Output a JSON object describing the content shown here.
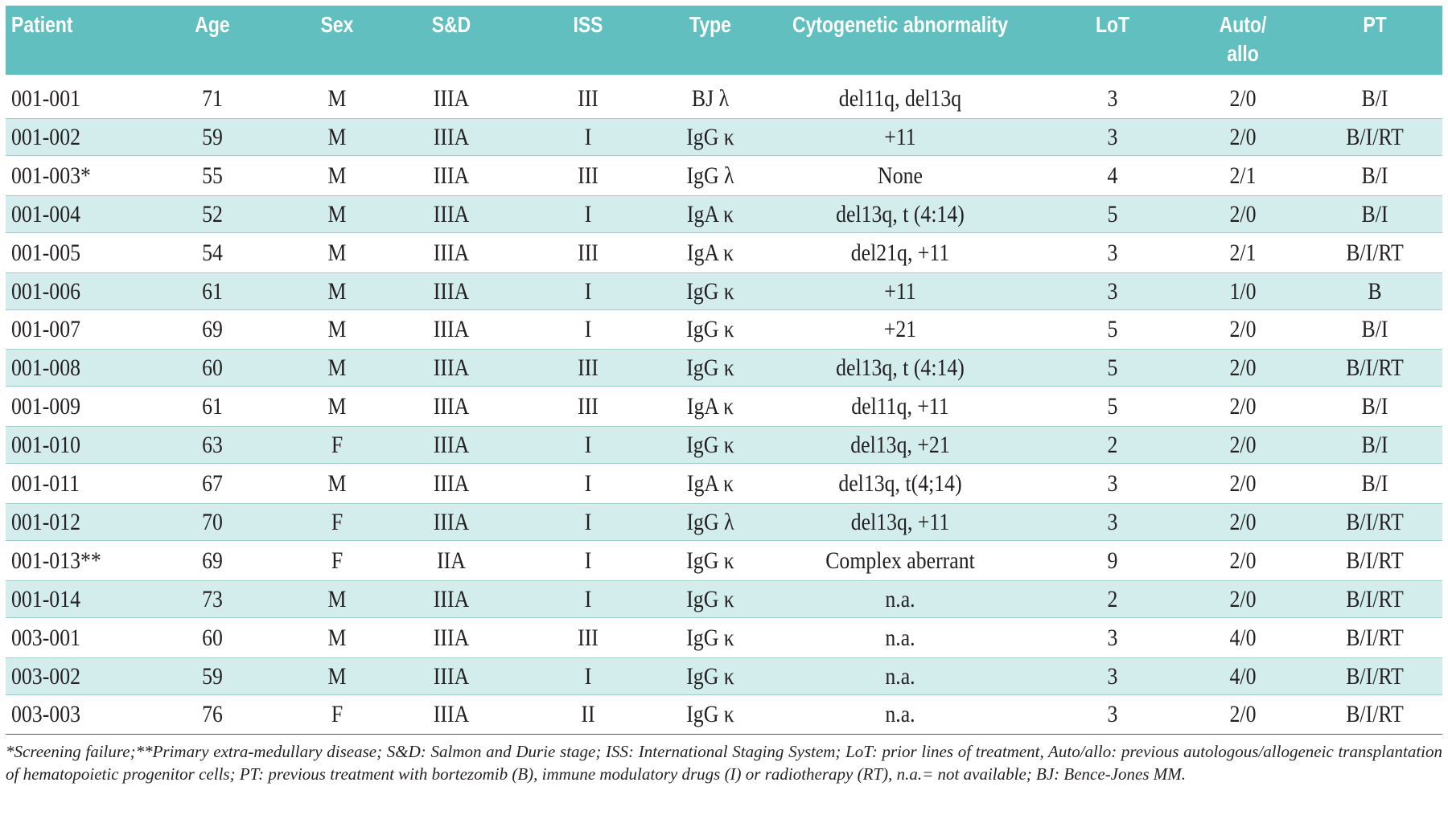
{
  "table": {
    "header": [
      "Patient",
      "Age",
      "Sex",
      "S&D",
      "ISS",
      "Type",
      "Cytogenetic abnormality",
      "LoT",
      "Auto/\nallo",
      "PT"
    ],
    "rows": [
      [
        "001-001",
        "71",
        "M",
        "IIIA",
        "III",
        "BJ λ",
        "del11q, del13q",
        "3",
        "2/0",
        "B/I"
      ],
      [
        "001-002",
        "59",
        "M",
        "IIIA",
        "I",
        "IgG κ",
        "+11",
        "3",
        "2/0",
        "B/I/RT"
      ],
      [
        "001-003*",
        "55",
        "M",
        "IIIA",
        "III",
        "IgG λ",
        "None",
        "4",
        "2/1",
        "B/I"
      ],
      [
        "001-004",
        "52",
        "M",
        "IIIA",
        "I",
        "IgA κ",
        "del13q, t (4:14)",
        "5",
        "2/0",
        "B/I"
      ],
      [
        "001-005",
        "54",
        "M",
        "IIIA",
        "III",
        "IgA κ",
        "del21q, +11",
        "3",
        "2/1",
        "B/I/RT"
      ],
      [
        "001-006",
        "61",
        "M",
        "IIIA",
        "I",
        "IgG κ",
        "+11",
        "3",
        "1/0",
        "B"
      ],
      [
        "001-007",
        "69",
        "M",
        "IIIA",
        "I",
        "IgG κ",
        "+21",
        "5",
        "2/0",
        "B/I"
      ],
      [
        "001-008",
        "60",
        "M",
        "IIIA",
        "III",
        "IgG κ",
        "del13q, t (4:14)",
        "5",
        "2/0",
        "B/I/RT"
      ],
      [
        "001-009",
        "61",
        "M",
        "IIIA",
        "III",
        "IgA κ",
        "del11q, +11",
        "5",
        "2/0",
        "B/I"
      ],
      [
        "001-010",
        "63",
        "F",
        "IIIA",
        "I",
        "IgG κ",
        "del13q, +21",
        "2",
        "2/0",
        "B/I"
      ],
      [
        "001-011",
        "67",
        "M",
        "IIIA",
        "I",
        "IgA κ",
        "del13q, t(4;14)",
        "3",
        "2/0",
        "B/I"
      ],
      [
        "001-012",
        "70",
        "F",
        "IIIA",
        "I",
        "IgG λ",
        "del13q, +11",
        "3",
        "2/0",
        "B/I/RT"
      ],
      [
        "001-013**",
        "69",
        "F",
        "IIA",
        "I",
        "IgG κ",
        "Complex aberrant",
        "9",
        "2/0",
        "B/I/RT"
      ],
      [
        "001-014",
        "73",
        "M",
        "IIIA",
        "I",
        "IgG κ",
        "n.a.",
        "2",
        "2/0",
        "B/I/RT"
      ],
      [
        "003-001",
        "60",
        "M",
        "IIIA",
        "III",
        "IgG κ",
        "n.a.",
        "3",
        "4/0",
        "B/I/RT"
      ],
      [
        "003-002",
        "59",
        "M",
        "IIIA",
        "I",
        "IgG κ",
        "n.a.",
        "3",
        "4/0",
        "B/I/RT"
      ],
      [
        "003-003",
        "76",
        "F",
        "IIIA",
        "II",
        "IgG κ",
        "n.a.",
        "3",
        "2/0",
        "B/I/RT"
      ]
    ]
  },
  "footnote": "*Screening failure;**Primary extra-medullary disease; S&D: Salmon and Durie stage; ISS: International Staging System; LoT: prior lines of treatment, Auto/allo: previous autologous/allogeneic transplantation of hematopoietic progenitor cells; PT: previous treatment with bortezomib (B), immune modulatory drugs (I) or radiotherapy (RT), n.a.= not available; BJ: Bence-Jones MM."
}
